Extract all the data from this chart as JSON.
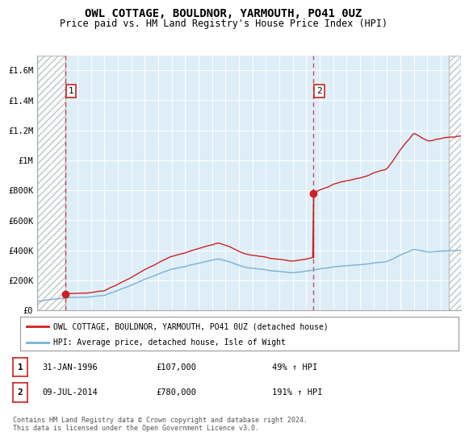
{
  "title": "OWL COTTAGE, BOULDNOR, YARMOUTH, PO41 0UZ",
  "subtitle": "Price paid vs. HM Land Registry's House Price Index (HPI)",
  "ylim": [
    0,
    1700000
  ],
  "yticks": [
    0,
    200000,
    400000,
    600000,
    800000,
    1000000,
    1200000,
    1400000,
    1600000
  ],
  "ytick_labels": [
    "£0",
    "£200K",
    "£400K",
    "£600K",
    "£800K",
    "£1M",
    "£1.2M",
    "£1.4M",
    "£1.6M"
  ],
  "purchase1": {
    "date_x": 1996.08,
    "price": 107000,
    "label": "1"
  },
  "purchase2": {
    "date_x": 2014.52,
    "price": 780000,
    "label": "2"
  },
  "hpi_color": "#7bafd4",
  "property_color": "#cc2222",
  "dashed_color": "#cc2222",
  "bg_color": "#ddeef8",
  "grid_color": "#ffffff",
  "hatch_color": "#bbbbbb",
  "legend_property": "OWL COTTAGE, BOULDNOR, YARMOUTH, PO41 0UZ (detached house)",
  "legend_hpi": "HPI: Average price, detached house, Isle of Wight",
  "table_rows": [
    {
      "num": "1",
      "date": "31-JAN-1996",
      "price": "£107,000",
      "change": "49% ↑ HPI"
    },
    {
      "num": "2",
      "date": "09-JUL-2014",
      "price": "£780,000",
      "change": "191% ↑ HPI"
    }
  ],
  "footnote": "Contains HM Land Registry data © Crown copyright and database right 2024.\nThis data is licensed under the Open Government Licence v3.0.",
  "xmin": 1994.0,
  "xmax": 2025.5,
  "xticks": [
    1994,
    1995,
    1996,
    1997,
    1998,
    1999,
    2000,
    2001,
    2002,
    2003,
    2004,
    2005,
    2006,
    2007,
    2008,
    2009,
    2010,
    2011,
    2012,
    2013,
    2014,
    2015,
    2016,
    2017,
    2018,
    2019,
    2020,
    2021,
    2022,
    2023,
    2024,
    2025
  ]
}
